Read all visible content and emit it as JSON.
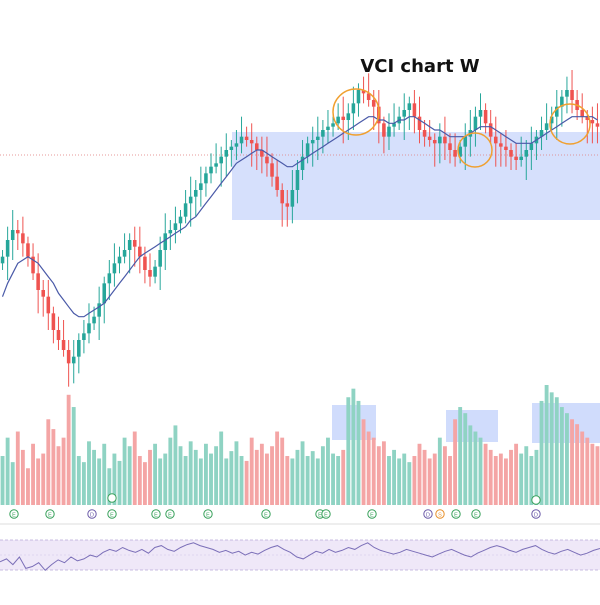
{
  "chart_data": {
    "type": "candlestick",
    "title": "VCI chart W",
    "xlabel": "",
    "ylabel": "",
    "grid": false,
    "colors": {
      "up": "#26a69a",
      "down": "#ef5350",
      "up_volume": "#8fd3c3",
      "down_volume": "#f4a5a5",
      "ma_line": "#4a5aa8",
      "range_box": "#c8d6fb",
      "highlight_circle": "#f0a030",
      "rsi_band": "#efe8f8",
      "rsi_line": "#7b6fb8",
      "marker_green": "#37a05a",
      "marker_purple": "#6b5aa8",
      "marker_orange": "#e8902a"
    },
    "price_range": [
      4,
      100
    ],
    "price_series": [
      50,
      55,
      58,
      57,
      54,
      50,
      45,
      40,
      38,
      33,
      28,
      25,
      22,
      18,
      20,
      25,
      27,
      30,
      32,
      36,
      42,
      45,
      48,
      50,
      52,
      55,
      53,
      50,
      46,
      44,
      47,
      52,
      57,
      58,
      60,
      62,
      66,
      68,
      70,
      72,
      75,
      77,
      78,
      80,
      82,
      83,
      84,
      86,
      85,
      84,
      82,
      80,
      78,
      74,
      70,
      66,
      65,
      70,
      76,
      80,
      84,
      85,
      86,
      88,
      89,
      90,
      92,
      91,
      93,
      96,
      100,
      99,
      97,
      95,
      90,
      86,
      89,
      90,
      92,
      94,
      96,
      92,
      88,
      86,
      85,
      84,
      86,
      84,
      82,
      80,
      83,
      86,
      88,
      92,
      94,
      90,
      86,
      84,
      83,
      82,
      80,
      79,
      80,
      82,
      84,
      86,
      88,
      90,
      92,
      95,
      98,
      100,
      97,
      94,
      92,
      91,
      90,
      89
    ],
    "ma_series": [
      38,
      42,
      45,
      48,
      49,
      50,
      49,
      48,
      46,
      44,
      42,
      39,
      37,
      35,
      33,
      32,
      32,
      33,
      34,
      35,
      36,
      38,
      40,
      42,
      44,
      46,
      48,
      50,
      51,
      52,
      53,
      54,
      55,
      56,
      57,
      58,
      59,
      61,
      62,
      64,
      66,
      68,
      70,
      72,
      74,
      76,
      78,
      79,
      80,
      81,
      82,
      82,
      81,
      80,
      79,
      78,
      77,
      77,
      78,
      79,
      80,
      81,
      82,
      83,
      84,
      85,
      86,
      87,
      88,
      89,
      90,
      91,
      92,
      92,
      91,
      91,
      90,
      90,
      91,
      91,
      92,
      92,
      91,
      90,
      89,
      88,
      88,
      87,
      86,
      86,
      86,
      86,
      87,
      88,
      89,
      89,
      89,
      88,
      87,
      86,
      85,
      84,
      84,
      84,
      84,
      85,
      86,
      87,
      88,
      89,
      90,
      91,
      92,
      92,
      92,
      92,
      92,
      91
    ],
    "volume_series": [
      40,
      55,
      35,
      60,
      45,
      30,
      50,
      38,
      42,
      70,
      62,
      48,
      55,
      90,
      80,
      40,
      35,
      52,
      45,
      38,
      50,
      30,
      42,
      36,
      55,
      48,
      60,
      40,
      35,
      45,
      50,
      38,
      42,
      55,
      65,
      48,
      40,
      52,
      45,
      38,
      50,
      42,
      48,
      60,
      38,
      44,
      52,
      40,
      36,
      55,
      45,
      50,
      42,
      48,
      60,
      55,
      40,
      38,
      45,
      52,
      40,
      44,
      38,
      48,
      55,
      42,
      40,
      45,
      88,
      95,
      85,
      70,
      60,
      55,
      48,
      52,
      40,
      45,
      38,
      42,
      35,
      40,
      50,
      45,
      38,
      42,
      55,
      48,
      40,
      70,
      80,
      75,
      65,
      60,
      55,
      50,
      45,
      40,
      42,
      38,
      45,
      50,
      42,
      48,
      40,
      45,
      85,
      98,
      92,
      88,
      80,
      75,
      70,
      66,
      60,
      55,
      50,
      48
    ],
    "rsi_series": [
      45,
      48,
      42,
      50,
      38,
      40,
      44,
      36,
      42,
      47,
      44,
      50,
      46,
      48,
      52,
      50,
      55,
      58,
      56,
      60,
      57,
      55,
      58,
      54,
      60,
      62,
      58,
      56,
      60,
      63,
      65,
      62,
      60,
      58,
      55,
      57,
      54,
      56,
      52,
      55,
      53,
      57,
      60,
      62,
      58,
      55,
      50,
      48,
      52,
      56,
      54,
      58,
      55,
      57,
      60,
      58,
      62,
      65,
      60,
      57,
      55,
      53,
      55,
      58,
      56,
      54,
      52,
      50,
      53,
      56,
      58,
      55,
      52,
      50,
      54,
      57,
      60,
      62,
      60,
      57,
      55,
      58,
      60,
      62,
      58,
      55,
      53,
      56,
      58,
      55,
      52,
      54,
      57,
      59
    ],
    "highlight_labels": [
      "",
      "",
      ""
    ],
    "marker_labels": [
      "E",
      "E",
      "D",
      "E",
      "E",
      "E",
      "E",
      "E",
      "E",
      "E",
      "E",
      "D",
      "S",
      "E",
      "E",
      "D"
    ]
  }
}
